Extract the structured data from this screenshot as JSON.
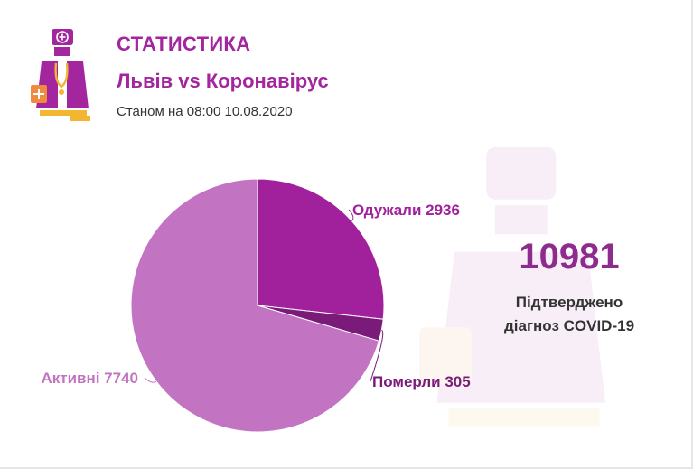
{
  "header": {
    "title": "СТАТИСТИКА",
    "subtitle": "Львів vs Коронавірус",
    "as_of": "Станом на 08:00 10.08.2020"
  },
  "summary": {
    "total": "10981",
    "caption_line1": "Підтверджено",
    "caption_line2": "діагноз COVID-19"
  },
  "icons": {
    "logo": "doctor-icon",
    "watermark": "doctor-watermark-icon"
  },
  "colors": {
    "accent": "#a3269f",
    "recovered": "#a1219d",
    "deaths": "#7a1a79",
    "active": "#c274c3",
    "logo_yellow": "#f2b632",
    "logo_orange": "#f08a3c"
  },
  "chart_data": {
    "type": "pie",
    "title": "",
    "slices": [
      {
        "label": "Одужали 2936",
        "category": "Одужали",
        "value": 2936,
        "color": "#a1219d"
      },
      {
        "label": "Померли 305",
        "category": "Померли",
        "value": 305,
        "color": "#7a1a79"
      },
      {
        "label": "Активні 7740",
        "category": "Активні",
        "value": 7740,
        "color": "#c274c3"
      }
    ],
    "legend": "none",
    "start_angle_deg": 0,
    "direction": "clockwise"
  }
}
